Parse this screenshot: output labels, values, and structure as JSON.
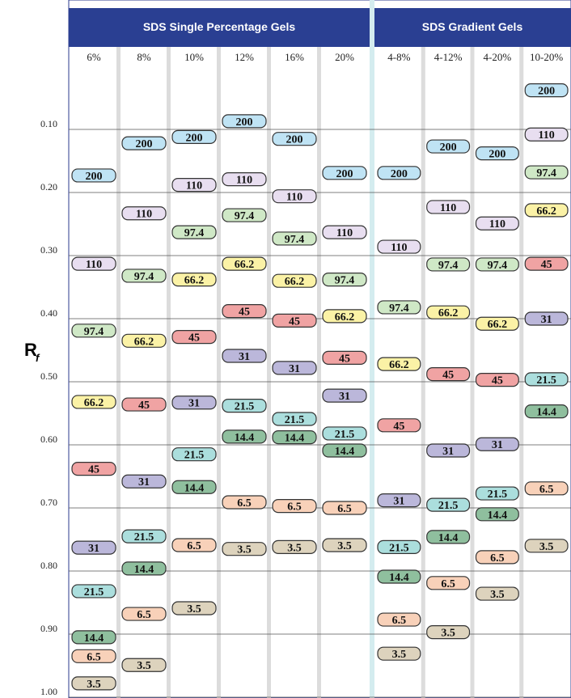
{
  "chart_data": {
    "type": "migration",
    "groups": [
      "SDS Single Percentage Gels",
      "SDS Gradient Gels"
    ],
    "categories": [
      "6%",
      "8%",
      "10%",
      "12%",
      "16%",
      "20%",
      "4-8%",
      "4-12%",
      "4-20%",
      "10-20%"
    ],
    "ylabel": {
      "main": "R",
      "sub": "f"
    },
    "ylim": [
      0,
      1.0
    ],
    "yticks": [
      {
        "value": 0.1,
        "label": "0.10"
      },
      {
        "value": 0.2,
        "label": "0.20"
      },
      {
        "value": 0.3,
        "label": "0.30"
      },
      {
        "value": 0.4,
        "label": "0.40"
      },
      {
        "value": 0.5,
        "label": "0.50"
      },
      {
        "value": 0.6,
        "label": "0.60"
      },
      {
        "value": 0.7,
        "label": "0.70"
      },
      {
        "value": 0.8,
        "label": "0.80"
      },
      {
        "value": 0.9,
        "label": "0.90"
      },
      {
        "value": 1.0,
        "label": "1.00"
      }
    ],
    "grid": true,
    "series": [
      {
        "name": "200",
        "color": "#bfe3f4",
        "values": [
          0.173,
          0.122,
          0.112,
          0.087,
          0.115,
          0.169,
          0.169,
          0.127,
          0.138,
          0.038
        ]
      },
      {
        "name": "110",
        "color": "#e8def0",
        "values": [
          0.313,
          0.233,
          0.188,
          0.179,
          0.206,
          0.263,
          0.286,
          0.223,
          0.249,
          0.108
        ]
      },
      {
        "name": "97.4",
        "color": "#cfe8c6",
        "values": [
          0.419,
          0.332,
          0.263,
          0.236,
          0.273,
          0.338,
          0.382,
          0.314,
          0.314,
          0.168
        ]
      },
      {
        "name": "66.2",
        "color": "#fbf2a6",
        "values": [
          0.532,
          0.435,
          0.338,
          0.313,
          0.34,
          0.396,
          0.472,
          0.39,
          0.408,
          0.228
        ]
      },
      {
        "name": "45",
        "color": "#f0a3a3",
        "values": [
          0.638,
          0.536,
          0.429,
          0.388,
          0.403,
          0.462,
          0.569,
          0.488,
          0.497,
          0.313
        ]
      },
      {
        "name": "31",
        "color": "#bbb7da",
        "values": [
          0.763,
          0.658,
          0.533,
          0.459,
          0.478,
          0.522,
          0.688,
          0.609,
          0.599,
          0.4
        ]
      },
      {
        "name": "21.5",
        "color": "#abdedd",
        "values": [
          0.832,
          0.745,
          0.615,
          0.538,
          0.559,
          0.582,
          0.762,
          0.695,
          0.677,
          0.496
        ]
      },
      {
        "name": "14.4",
        "color": "#8fbf9e",
        "values": [
          0.905,
          0.796,
          0.667,
          0.587,
          0.588,
          0.609,
          0.809,
          0.746,
          0.71,
          0.547
        ]
      },
      {
        "name": "6.5",
        "color": "#f8d1b9",
        "values": [
          0.935,
          0.868,
          0.759,
          0.691,
          0.697,
          0.7,
          0.877,
          0.819,
          0.778,
          0.669
        ]
      },
      {
        "name": "3.5",
        "color": "#ddd3bd",
        "values": [
          0.978,
          0.949,
          0.859,
          0.765,
          0.762,
          0.759,
          0.931,
          0.897,
          0.836,
          0.76
        ]
      }
    ]
  }
}
